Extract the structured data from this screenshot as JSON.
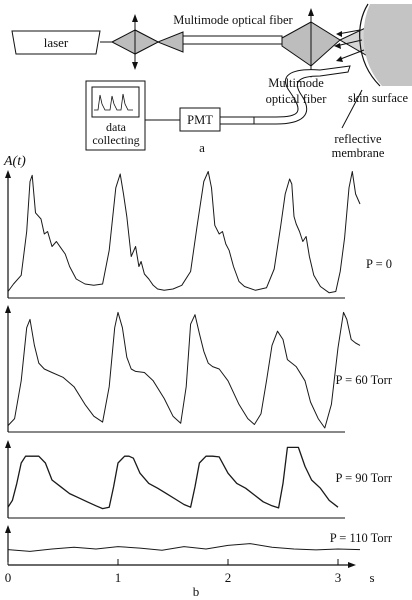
{
  "schematic": {
    "laser_label": "laser",
    "fiber_top_label": "Multimode optical fiber",
    "fiber_bottom_label_lines": [
      "Multimode",
      "optical fiber"
    ],
    "skin_label": "skin surface",
    "membrane_label_lines": [
      "reflective",
      "membrane"
    ],
    "detector_label": "PMT",
    "data_label_lines": [
      "data",
      "collecting"
    ],
    "panel_label": "a"
  },
  "chart_data": {
    "type": "line",
    "panel_label": "b",
    "ylabel": "A(t)",
    "xlabel": "s",
    "xlim": [
      0,
      3.2
    ],
    "x_ticks": [
      "0",
      "1",
      "2",
      "3"
    ],
    "colors": {
      "trace": "#1a1a1a",
      "axis": "#111111"
    },
    "series": [
      {
        "name": "P = 0",
        "baseline": 0.03,
        "x": [
          0.0,
          0.05,
          0.12,
          0.17,
          0.2,
          0.22,
          0.25,
          0.3,
          0.33,
          0.36,
          0.4,
          0.44,
          0.48,
          0.52,
          0.56,
          0.62,
          0.7,
          0.78,
          0.86,
          0.92,
          0.98,
          1.02,
          1.05,
          1.08,
          1.12,
          1.16,
          1.19,
          1.21,
          1.24,
          1.28,
          1.32,
          1.36,
          1.42,
          1.5,
          1.58,
          1.66,
          1.72,
          1.78,
          1.82,
          1.85,
          1.88,
          1.92,
          1.95,
          1.98,
          2.01,
          2.05,
          2.1,
          2.15,
          2.25,
          2.35,
          2.42,
          2.48,
          2.52,
          2.56,
          2.58,
          2.6,
          2.62,
          2.65,
          2.68,
          2.71,
          2.74,
          2.78,
          2.84,
          2.92,
          2.98,
          3.02,
          3.06,
          3.1,
          3.13,
          3.16,
          3.2
        ],
        "y": [
          0.02,
          0.08,
          0.15,
          0.5,
          0.9,
          0.95,
          0.65,
          0.6,
          0.48,
          0.5,
          0.38,
          0.42,
          0.37,
          0.32,
          0.22,
          0.12,
          0.08,
          0.07,
          0.08,
          0.35,
          0.85,
          0.96,
          0.8,
          0.62,
          0.3,
          0.38,
          0.22,
          0.26,
          0.16,
          0.12,
          0.07,
          0.04,
          0.03,
          0.04,
          0.07,
          0.18,
          0.55,
          0.9,
          0.98,
          0.85,
          0.55,
          0.48,
          0.5,
          0.4,
          0.35,
          0.22,
          0.1,
          0.06,
          0.03,
          0.05,
          0.2,
          0.55,
          0.8,
          0.92,
          0.88,
          0.62,
          0.56,
          0.5,
          0.42,
          0.46,
          0.3,
          0.15,
          0.06,
          0.01,
          0.02,
          0.18,
          0.45,
          0.85,
          0.98,
          0.8,
          0.72
        ]
      },
      {
        "name": "P = 60 Torr",
        "baseline": 0.02,
        "x": [
          0.0,
          0.06,
          0.12,
          0.17,
          0.2,
          0.24,
          0.28,
          0.33,
          0.4,
          0.5,
          0.6,
          0.7,
          0.78,
          0.86,
          0.92,
          0.97,
          1.0,
          1.04,
          1.08,
          1.12,
          1.16,
          1.24,
          1.32,
          1.42,
          1.5,
          1.57,
          1.62,
          1.66,
          1.7,
          1.74,
          1.78,
          1.82,
          1.86,
          1.92,
          2.0,
          2.1,
          2.18,
          2.24,
          2.3,
          2.35,
          2.4,
          2.45,
          2.5,
          2.54,
          2.58,
          2.62,
          2.66,
          2.7,
          2.75,
          2.82,
          2.88,
          2.94,
          3.0,
          3.05,
          3.08,
          3.12,
          3.16,
          3.2
        ],
        "y": [
          0.02,
          0.08,
          0.4,
          0.85,
          0.92,
          0.7,
          0.55,
          0.5,
          0.47,
          0.43,
          0.35,
          0.2,
          0.1,
          0.05,
          0.35,
          0.85,
          0.98,
          0.85,
          0.6,
          0.5,
          0.48,
          0.47,
          0.4,
          0.25,
          0.1,
          0.04,
          0.35,
          0.88,
          0.96,
          0.8,
          0.65,
          0.55,
          0.52,
          0.5,
          0.4,
          0.2,
          0.08,
          0.03,
          0.12,
          0.4,
          0.7,
          0.82,
          0.75,
          0.58,
          0.55,
          0.52,
          0.46,
          0.4,
          0.22,
          0.08,
          0.0,
          0.2,
          0.68,
          0.98,
          0.92,
          0.75,
          0.72,
          0.7
        ]
      },
      {
        "name": "P = 90 Torr",
        "baseline": 0.02,
        "x": [
          0.0,
          0.04,
          0.08,
          0.12,
          0.16,
          0.2,
          0.28,
          0.34,
          0.4,
          0.48,
          0.56,
          0.64,
          0.72,
          0.8,
          0.86,
          0.92,
          0.96,
          1.0,
          1.06,
          1.1,
          1.14,
          1.2,
          1.28,
          1.36,
          1.44,
          1.52,
          1.6,
          1.66,
          1.7,
          1.74,
          1.8,
          1.86,
          1.92,
          2.0,
          2.08,
          2.16,
          2.24,
          2.32,
          2.4,
          2.46,
          2.5,
          2.54,
          2.64,
          2.7,
          2.76,
          2.84,
          2.92,
          3.0
        ],
        "y": [
          0.1,
          0.2,
          0.45,
          0.75,
          0.85,
          0.85,
          0.85,
          0.75,
          0.5,
          0.4,
          0.3,
          0.24,
          0.18,
          0.12,
          0.08,
          0.1,
          0.4,
          0.75,
          0.85,
          0.85,
          0.82,
          0.6,
          0.45,
          0.38,
          0.3,
          0.22,
          0.14,
          0.1,
          0.4,
          0.75,
          0.85,
          0.85,
          0.84,
          0.6,
          0.45,
          0.38,
          0.28,
          0.18,
          0.12,
          0.09,
          0.45,
          0.98,
          0.98,
          0.7,
          0.5,
          0.38,
          0.2,
          0.1
        ]
      },
      {
        "name": "P = 110 Torr",
        "baseline": 0.3,
        "x": [
          0.0,
          0.2,
          0.4,
          0.6,
          0.8,
          1.0,
          1.2,
          1.4,
          1.6,
          1.8,
          2.0,
          2.2,
          2.4,
          2.6,
          2.8,
          3.0,
          3.2
        ],
        "y": [
          0.28,
          0.22,
          0.3,
          0.36,
          0.3,
          0.38,
          0.33,
          0.26,
          0.38,
          0.3,
          0.42,
          0.48,
          0.36,
          0.3,
          0.27,
          0.3,
          0.28
        ]
      }
    ]
  }
}
